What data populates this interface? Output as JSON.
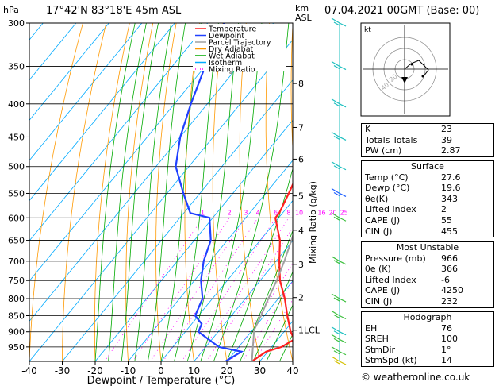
{
  "header": {
    "hpa_label": "hPa",
    "location": "17°42'N  83°18'E  45m  ASL",
    "km_label": "km",
    "asl_label": "ASL",
    "datetime": "07.04.2021  00GMT  (Base: 00)"
  },
  "legend": [
    {
      "label": "Temperature",
      "color": "#ff2020",
      "style": "solid"
    },
    {
      "label": "Dewpoint",
      "color": "#2040ff",
      "style": "solid"
    },
    {
      "label": "Parcel Trajectory",
      "color": "#a0a0a0",
      "style": "solid"
    },
    {
      "label": "Dry Adiabat",
      "color": "#ff9900",
      "style": "solid"
    },
    {
      "label": "Wet Adiabat",
      "color": "#00aa00",
      "style": "solid"
    },
    {
      "label": "Isotherm",
      "color": "#00aaff",
      "style": "solid"
    },
    {
      "label": "Mixing Ratio",
      "color": "#ff00ff",
      "style": "dotted"
    }
  ],
  "chart_data": {
    "type": "line",
    "title": "",
    "xlabel": "Dewpoint / Temperature (°C)",
    "ylabel": "",
    "right_axis_label": "Mixing Ratio (g/kg)",
    "xlim": [
      -40,
      40
    ],
    "ylim_hpa": [
      1000,
      300
    ],
    "x_ticks": [
      "-40",
      "-30",
      "-20",
      "-10",
      "0",
      "10",
      "20",
      "30",
      "40"
    ],
    "p_ticks": [
      "300",
      "350",
      "400",
      "450",
      "500",
      "550",
      "600",
      "650",
      "700",
      "750",
      "800",
      "850",
      "900",
      "950"
    ],
    "km_ticks": [
      {
        "label": "8",
        "p": 372
      },
      {
        "label": "7",
        "p": 435
      },
      {
        "label": "6",
        "p": 487
      },
      {
        "label": "5",
        "p": 555
      },
      {
        "label": "4",
        "p": 627
      },
      {
        "label": "3",
        "p": 708
      },
      {
        "label": "2",
        "p": 797
      },
      {
        "label": "1LCL",
        "p": 895
      }
    ],
    "mixing_ratio_labels": [
      "1",
      "2",
      "3",
      "4",
      "6",
      "8",
      "10",
      "16",
      "20",
      "25"
    ],
    "series": [
      {
        "name": "Temperature",
        "color": "#ff2020",
        "points": [
          [
            1000,
            27.6
          ],
          [
            966,
            29.5
          ],
          [
            950,
            33
          ],
          [
            925,
            35
          ],
          [
            900,
            32
          ],
          [
            850,
            27
          ],
          [
            800,
            22
          ],
          [
            750,
            16
          ],
          [
            700,
            11
          ],
          [
            650,
            6
          ],
          [
            600,
            -1
          ],
          [
            590,
            -1
          ],
          [
            550,
            -3
          ],
          [
            500,
            -6
          ],
          [
            450,
            -12
          ],
          [
            400,
            -19
          ],
          [
            370,
            -24
          ],
          [
            350,
            -27
          ],
          [
            300,
            -34
          ]
        ]
      },
      {
        "name": "Dewpoint",
        "color": "#2040ff",
        "points": [
          [
            1000,
            19.6
          ],
          [
            966,
            22
          ],
          [
            950,
            14
          ],
          [
            925,
            9
          ],
          [
            900,
            4
          ],
          [
            875,
            3
          ],
          [
            850,
            -1
          ],
          [
            800,
            -3
          ],
          [
            750,
            -8
          ],
          [
            700,
            -12
          ],
          [
            650,
            -15
          ],
          [
            600,
            -21
          ],
          [
            590,
            -28
          ],
          [
            550,
            -35
          ],
          [
            500,
            -44
          ],
          [
            450,
            -50
          ],
          [
            400,
            -55
          ],
          [
            350,
            -60
          ],
          [
            300,
            -65
          ]
        ]
      },
      {
        "name": "Parcel Trajectory",
        "color": "#a0a0a0",
        "points": [
          [
            1000,
            27.6
          ],
          [
            895,
            20.5
          ],
          [
            850,
            19
          ],
          [
            800,
            17
          ],
          [
            750,
            15
          ],
          [
            700,
            12.5
          ],
          [
            650,
            9.5
          ],
          [
            600,
            6
          ],
          [
            550,
            2
          ],
          [
            500,
            -3
          ],
          [
            450,
            -9
          ],
          [
            400,
            -16
          ],
          [
            350,
            -24
          ],
          [
            300,
            -33
          ]
        ]
      }
    ]
  },
  "wind_barbs": [
    {
      "p": 1000,
      "color": "#d4c000"
    },
    {
      "p": 966,
      "color": "#40c040"
    },
    {
      "p": 925,
      "color": "#40c040"
    },
    {
      "p": 900,
      "color": "#20c0c0"
    },
    {
      "p": 850,
      "color": "#40c040"
    },
    {
      "p": 800,
      "color": "#40c040"
    },
    {
      "p": 700,
      "color": "#40c040"
    },
    {
      "p": 600,
      "color": "#40c040"
    },
    {
      "p": 550,
      "color": "#2060ff"
    },
    {
      "p": 500,
      "color": "#20c0c0"
    },
    {
      "p": 450,
      "color": "#20c0c0"
    },
    {
      "p": 400,
      "color": "#20c0c0"
    },
    {
      "p": 350,
      "color": "#20c0c0"
    },
    {
      "p": 300,
      "color": "#20c0c0"
    }
  ],
  "hodograph": {
    "kt_label": "kt",
    "ring_labels": [
      "20",
      "40"
    ]
  },
  "indices": {
    "rows": [
      {
        "label": "K",
        "value": "23"
      },
      {
        "label": "Totals Totals",
        "value": "39"
      },
      {
        "label": "PW (cm)",
        "value": "2.87"
      }
    ]
  },
  "surface": {
    "title": "Surface",
    "rows": [
      {
        "label": "Temp (°C)",
        "value": "27.6"
      },
      {
        "label": "Dewp (°C)",
        "value": "19.6"
      },
      {
        "label": "θe(K)",
        "value": "343"
      },
      {
        "label": "Lifted Index",
        "value": "2"
      },
      {
        "label": "CAPE (J)",
        "value": "55"
      },
      {
        "label": "CIN (J)",
        "value": "455"
      }
    ]
  },
  "most_unstable": {
    "title": "Most Unstable",
    "rows": [
      {
        "label": "Pressure (mb)",
        "value": "966"
      },
      {
        "label": "θe (K)",
        "value": "366"
      },
      {
        "label": "Lifted Index",
        "value": "-6"
      },
      {
        "label": "CAPE (J)",
        "value": "4250"
      },
      {
        "label": "CIN (J)",
        "value": "232"
      }
    ]
  },
  "hodograph_table": {
    "title": "Hodograph",
    "rows": [
      {
        "label": "EH",
        "value": "76"
      },
      {
        "label": "SREH",
        "value": "100"
      },
      {
        "label": "StmDir",
        "value": "1°"
      },
      {
        "label": "StmSpd (kt)",
        "value": "14"
      }
    ]
  },
  "copyright": "© weatheronline.co.uk"
}
